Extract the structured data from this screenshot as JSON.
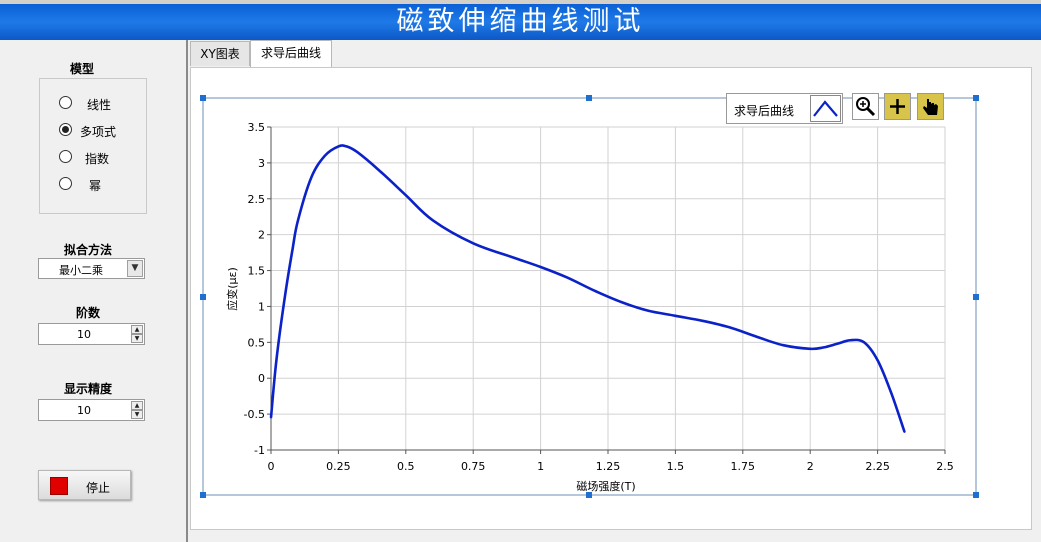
{
  "window": {
    "title": "磁致伸缩曲线测试"
  },
  "left_panel": {
    "model": {
      "label": "模型",
      "options": [
        {
          "label": "线性",
          "selected": false
        },
        {
          "label": "多项式",
          "selected": true
        },
        {
          "label": "指数",
          "selected": false
        },
        {
          "label": "幂",
          "selected": false
        }
      ]
    },
    "fit_method": {
      "label": "拟合方法",
      "value": "最小二乘"
    },
    "order": {
      "label": "阶数",
      "value": "10"
    },
    "precision": {
      "label": "显示精度",
      "value": "10"
    },
    "stop_button": {
      "label": "停止"
    }
  },
  "tabs": [
    {
      "label": "XY图表",
      "active": false
    },
    {
      "label": "求导后曲线",
      "active": true
    }
  ],
  "graph": {
    "legend_label": "求导后曲线",
    "tools": [
      "zoom-icon",
      "crosshair-icon",
      "pan-hand-icon"
    ],
    "colors": {
      "line": "#0b22c8",
      "tool_bg": "#d8c44a",
      "selection_handle": "#1f6fd0"
    }
  },
  "chart_data": {
    "type": "line",
    "title": "",
    "xlabel": "磁场强度(T)",
    "ylabel": "应变(με)",
    "xlim": [
      0,
      2.5
    ],
    "ylim": [
      -1,
      3.5
    ],
    "xticks": [
      "0",
      "0.25",
      "0.5",
      "0.75",
      "1",
      "1.25",
      "1.5",
      "1.75",
      "2",
      "2.25",
      "2.5"
    ],
    "yticks": [
      "3.5",
      "3",
      "2.5",
      "2",
      "1.5",
      "1",
      "0.5",
      "0",
      "-0.5",
      "-1"
    ],
    "grid": true,
    "series": [
      {
        "name": "求导后曲线",
        "x": [
          0,
          0.02,
          0.05,
          0.08,
          0.1,
          0.15,
          0.2,
          0.25,
          0.28,
          0.32,
          0.4,
          0.5,
          0.6,
          0.75,
          0.9,
          1.0,
          1.1,
          1.2,
          1.3,
          1.4,
          1.5,
          1.6,
          1.7,
          1.8,
          1.9,
          2.0,
          2.05,
          2.1,
          2.15,
          2.2,
          2.25,
          2.3,
          2.35
        ],
        "y": [
          -0.55,
          0.25,
          1.1,
          1.8,
          2.2,
          2.8,
          3.1,
          3.23,
          3.23,
          3.15,
          2.9,
          2.55,
          2.2,
          1.88,
          1.68,
          1.55,
          1.4,
          1.22,
          1.06,
          0.94,
          0.87,
          0.8,
          0.71,
          0.58,
          0.46,
          0.41,
          0.43,
          0.48,
          0.53,
          0.5,
          0.25,
          -0.2,
          -0.75
        ]
      }
    ]
  }
}
